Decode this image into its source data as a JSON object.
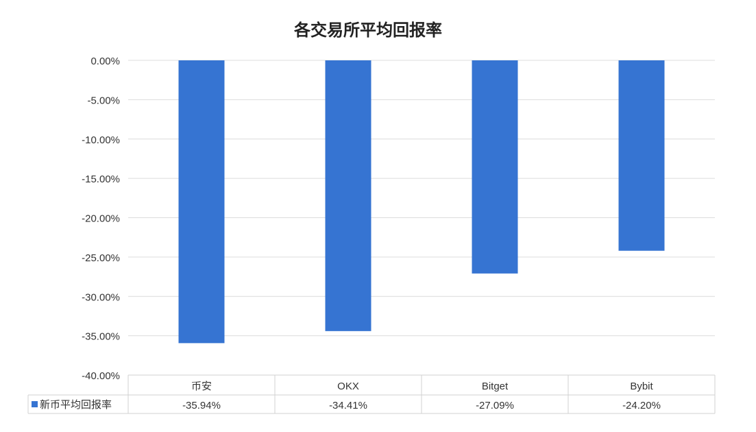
{
  "chart_data": {
    "type": "bar",
    "title": "各交易所平均回报率",
    "categories": [
      "币安",
      "OKX",
      "Bitget",
      "Bybit"
    ],
    "series": [
      {
        "name": "新币平均回报率",
        "values": [
          -35.94,
          -34.41,
          -27.09,
          -24.2
        ],
        "labels": [
          "-35.94%",
          "-34.41%",
          "-27.09%",
          "-24.20%"
        ],
        "color": "#3674d2"
      }
    ],
    "ylim": [
      -40,
      0
    ],
    "yticks": [
      0,
      -5,
      -10,
      -15,
      -20,
      -25,
      -30,
      -35,
      -40
    ],
    "ytick_labels": [
      "0.00%",
      "-5.00%",
      "-10.00%",
      "-15.00%",
      "-20.00%",
      "-25.00%",
      "-30.00%",
      "-35.00%",
      "-40.00%"
    ],
    "grid": true,
    "legend": "data-table-bottom-left",
    "data_table": true
  }
}
